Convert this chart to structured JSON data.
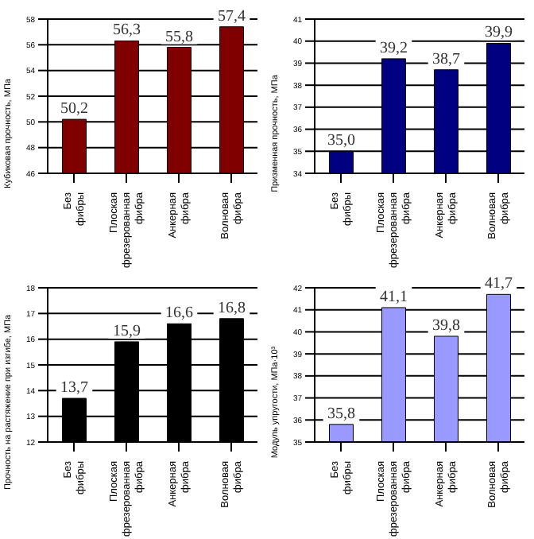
{
  "chart_data": [
    {
      "type": "bar",
      "ylabel": "Кубиковая прочность, МПа",
      "categories": [
        "Без фибры",
        "Плоская фрезерованная фибра",
        "Анкерная фибра",
        "Волновая фибра"
      ],
      "values": [
        50.2,
        56.3,
        55.8,
        57.4
      ],
      "color": "#800000",
      "ylim": [
        46,
        58
      ],
      "yticks": [
        46,
        48,
        50,
        52,
        54,
        56,
        58
      ],
      "grid": "y",
      "value_labels": [
        "50,2",
        "56,3",
        "55,8",
        "57,4"
      ]
    },
    {
      "type": "bar",
      "ylabel": "Призменная прочность, МПа",
      "categories": [
        "Без фибры",
        "Плоская фрезерованная фибра",
        "Анкерная фибра",
        "Волновая фибра"
      ],
      "values": [
        35.0,
        39.2,
        38.7,
        39.9
      ],
      "color": "#000080",
      "ylim": [
        34,
        41
      ],
      "yticks": [
        34,
        35,
        36,
        37,
        38,
        39,
        40,
        41
      ],
      "grid": "y",
      "value_labels": [
        "35,0",
        "39,2",
        "38,7",
        "39,9"
      ]
    },
    {
      "type": "bar",
      "ylabel": "Прочность на растяжение при изгибе, МПа",
      "categories": [
        "Без фибры",
        "Плоская фрезерованная фибра",
        "Анкерная фибра",
        "Волновая фибра"
      ],
      "values": [
        13.7,
        15.9,
        16.6,
        16.8
      ],
      "color": "#000000",
      "ylim": [
        12,
        18
      ],
      "yticks": [
        12,
        13,
        14,
        15,
        16,
        17,
        18
      ],
      "grid": "y",
      "value_labels": [
        "13,7",
        "15,9",
        "16,6",
        "16,8"
      ]
    },
    {
      "type": "bar",
      "ylabel": "Модуль упругости, МПа·10³",
      "categories": [
        "Без фибры",
        "Плоская фрезерованная фибра",
        "Анкерная фибра",
        "Волновая фибра"
      ],
      "values": [
        35.8,
        41.1,
        39.8,
        41.7
      ],
      "color": "#9999ff",
      "ylim": [
        35,
        42
      ],
      "yticks": [
        35,
        36,
        37,
        38,
        39,
        40,
        41,
        42
      ],
      "grid": "y",
      "value_labels": [
        "35,8",
        "41,1",
        "39,8",
        "41,7"
      ]
    }
  ]
}
